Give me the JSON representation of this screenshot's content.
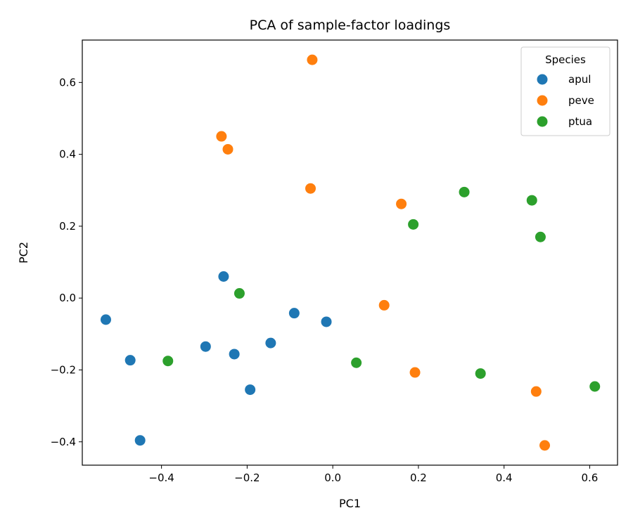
{
  "chart_data": {
    "type": "scatter",
    "title": "PCA of sample-factor loadings",
    "xlabel": "PC1",
    "ylabel": "PC2",
    "xlim": [
      -0.585,
      0.665
    ],
    "ylim": [
      -0.465,
      0.718
    ],
    "xticks": [
      -0.4,
      -0.2,
      0.0,
      0.2,
      0.4,
      0.6
    ],
    "yticks": [
      -0.4,
      -0.2,
      0.0,
      0.2,
      0.4,
      0.6
    ],
    "xtick_labels": [
      "−0.4",
      "−0.2",
      "0.0",
      "0.2",
      "0.4",
      "0.6"
    ],
    "ytick_labels": [
      "−0.4",
      "−0.2",
      "0.0",
      "0.2",
      "0.4",
      "0.6"
    ],
    "grid": false,
    "legend": {
      "title": "Species",
      "placement": "top-right"
    },
    "series": [
      {
        "name": "apul",
        "color": "#1f77b4",
        "points": [
          {
            "x": -0.53,
            "y": -0.06
          },
          {
            "x": -0.255,
            "y": 0.06
          },
          {
            "x": -0.09,
            "y": -0.042
          },
          {
            "x": -0.015,
            "y": -0.066
          },
          {
            "x": -0.473,
            "y": -0.173
          },
          {
            "x": -0.297,
            "y": -0.135
          },
          {
            "x": -0.23,
            "y": -0.156
          },
          {
            "x": -0.145,
            "y": -0.125
          },
          {
            "x": -0.193,
            "y": -0.255
          },
          {
            "x": -0.45,
            "y": -0.396
          }
        ]
      },
      {
        "name": "peve",
        "color": "#ff7f0e",
        "points": [
          {
            "x": -0.048,
            "y": 0.663
          },
          {
            "x": -0.26,
            "y": 0.45
          },
          {
            "x": -0.245,
            "y": 0.414
          },
          {
            "x": -0.052,
            "y": 0.305
          },
          {
            "x": 0.16,
            "y": 0.262
          },
          {
            "x": 0.12,
            "y": -0.02
          },
          {
            "x": 0.192,
            "y": -0.207
          },
          {
            "x": 0.475,
            "y": -0.26
          },
          {
            "x": 0.495,
            "y": -0.41
          }
        ]
      },
      {
        "name": "ptua",
        "color": "#2ca02c",
        "points": [
          {
            "x": 0.307,
            "y": 0.295
          },
          {
            "x": 0.465,
            "y": 0.272
          },
          {
            "x": 0.188,
            "y": 0.205
          },
          {
            "x": 0.485,
            "y": 0.17
          },
          {
            "x": -0.218,
            "y": 0.013
          },
          {
            "x": -0.385,
            "y": -0.175
          },
          {
            "x": 0.055,
            "y": -0.18
          },
          {
            "x": 0.345,
            "y": -0.21
          },
          {
            "x": 0.612,
            "y": -0.246
          }
        ]
      }
    ]
  }
}
